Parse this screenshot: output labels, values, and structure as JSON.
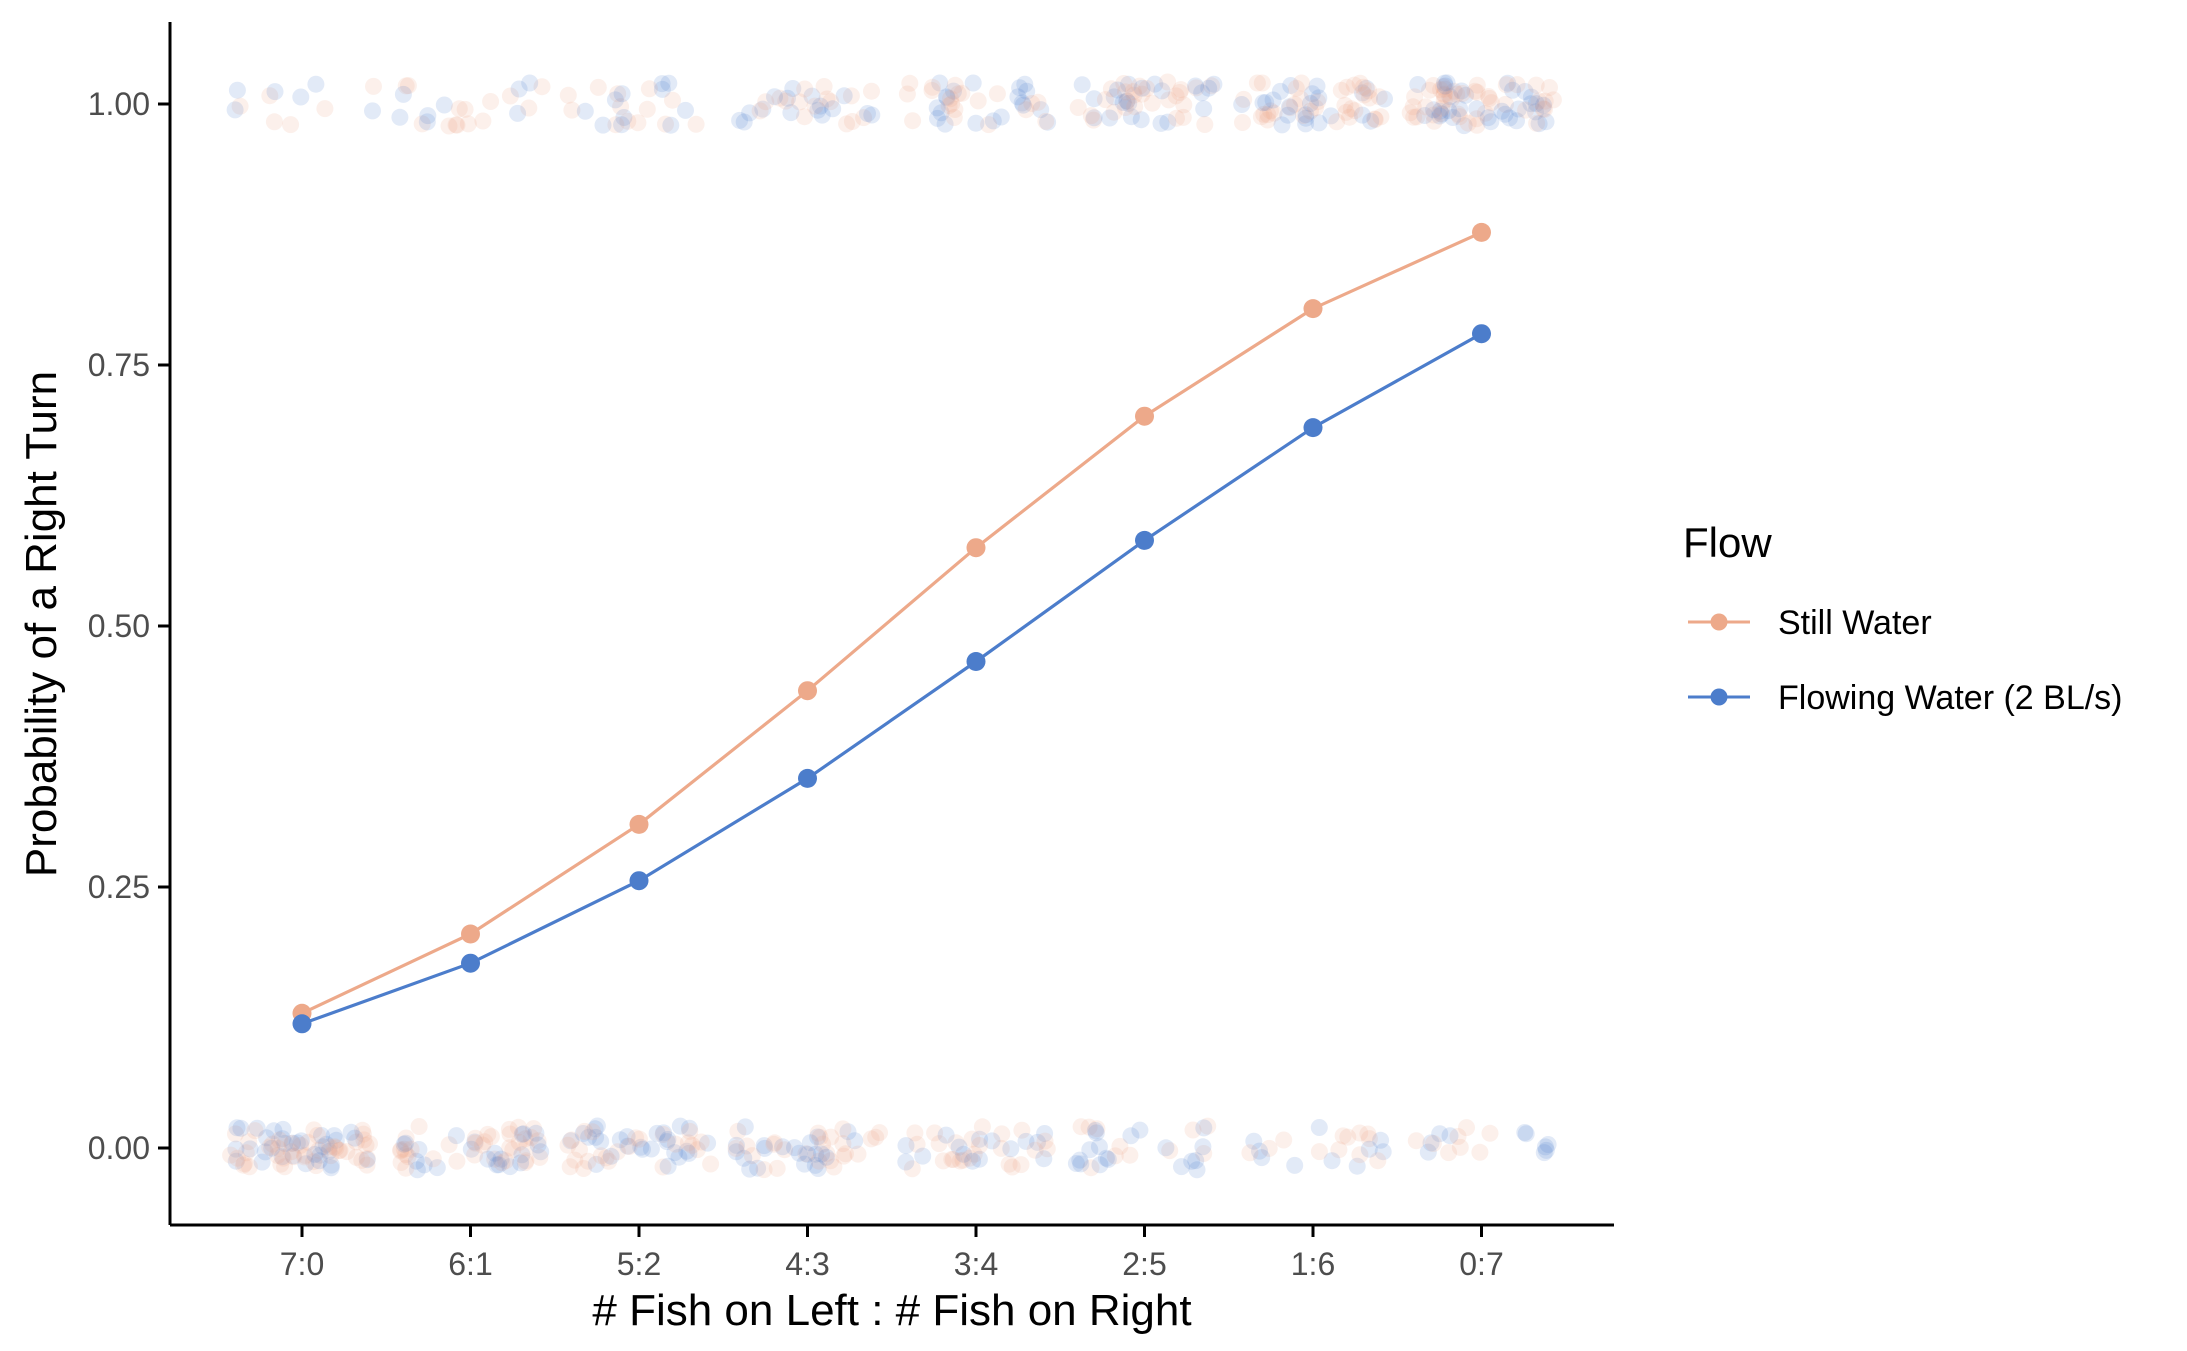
{
  "chart_data": {
    "type": "line",
    "xlabel": "# Fish on Left : # Fish on Right",
    "ylabel": "Probability of a Right Turn",
    "categories": [
      "7:0",
      "6:1",
      "5:2",
      "4:3",
      "3:4",
      "2:5",
      "1:6",
      "0:7"
    ],
    "yticks": [
      "0.00",
      "0.25",
      "0.50",
      "0.75",
      "1.00"
    ],
    "ylim": [
      -0.077,
      1.075
    ],
    "grid": false,
    "legend": {
      "title": "Flow",
      "position": "right"
    },
    "series": [
      {
        "name": "Still Water",
        "color": "#EDA98A",
        "values": [
          0.129,
          0.205,
          0.31,
          0.438,
          0.575,
          0.701,
          0.804,
          0.877
        ]
      },
      {
        "name": "Flowing Water (2 BL/s)",
        "color": "#4C7DCB",
        "values": [
          0.119,
          0.177,
          0.256,
          0.354,
          0.466,
          0.582,
          0.69,
          0.78
        ]
      }
    ],
    "raw_observations": {
      "note": "jittered individual trial outcomes (0 = left turn, 1 = right turn), drawn semi-transparent",
      "values": [
        0,
        1
      ],
      "counts_at_1": [
        12,
        22,
        24,
        32,
        40,
        50,
        60,
        80
      ],
      "counts_at_0": [
        80,
        60,
        52,
        48,
        40,
        30,
        22,
        18
      ]
    }
  }
}
